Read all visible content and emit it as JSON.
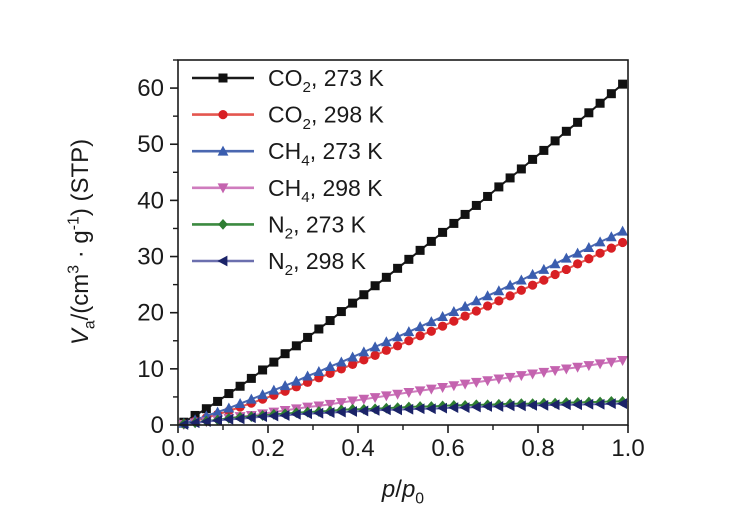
{
  "figure": {
    "background": "#ffffff",
    "frame_color": "#1a1a1a"
  },
  "chart_data": {
    "type": "line",
    "title": "",
    "xlabel_parts": [
      {
        "t": "p",
        "s": "i"
      },
      {
        "t": "/"
      },
      {
        "t": "p",
        "s": "i"
      },
      {
        "t": "0",
        "s": "sub"
      }
    ],
    "ylabel_parts": [
      {
        "t": "V",
        "s": "i"
      },
      {
        "t": "a",
        "s": "sub"
      },
      {
        "t": "/(cm"
      },
      {
        "t": "3",
        "s": "sup"
      },
      {
        "t": " · g"
      },
      {
        "t": "-1",
        "s": "sup"
      },
      {
        "t": ") (STP)"
      }
    ],
    "xlim": [
      0,
      1.0
    ],
    "ylim": [
      0,
      65
    ],
    "grid": false,
    "legend_position": "top-left",
    "x_ticks": {
      "values": [
        0,
        0.2,
        0.4,
        0.6,
        0.8,
        1.0
      ],
      "labels": [
        "0.0",
        "0.2",
        "0.4",
        "0.6",
        "0.8",
        "1.0"
      ],
      "minor": [
        0.1,
        0.3,
        0.5,
        0.7,
        0.9
      ]
    },
    "y_ticks": {
      "values": [
        0,
        10,
        20,
        30,
        40,
        50,
        60
      ],
      "labels": [
        "0",
        "10",
        "20",
        "30",
        "40",
        "50",
        "60"
      ],
      "minor": [
        5,
        15,
        25,
        35,
        45,
        55,
        65
      ]
    },
    "x": [
      0.013,
      0.038,
      0.063,
      0.088,
      0.113,
      0.138,
      0.163,
      0.188,
      0.213,
      0.238,
      0.263,
      0.288,
      0.313,
      0.338,
      0.363,
      0.388,
      0.413,
      0.438,
      0.463,
      0.488,
      0.513,
      0.538,
      0.563,
      0.588,
      0.613,
      0.638,
      0.663,
      0.688,
      0.713,
      0.738,
      0.763,
      0.788,
      0.813,
      0.838,
      0.863,
      0.888,
      0.913,
      0.938,
      0.963,
      0.988
    ],
    "series": [
      {
        "id": "co2-273k",
        "label_parts": [
          {
            "t": "CO"
          },
          {
            "t": "2",
            "s": "sub"
          },
          {
            "t": ", 273 K"
          }
        ],
        "marker": "square",
        "line_color": "#1a1a1a",
        "marker_color": "#111111",
        "values": [
          0.5,
          1.7,
          2.9,
          4.2,
          5.6,
          6.9,
          8.3,
          9.8,
          11.2,
          12.7,
          14.1,
          15.6,
          17.1,
          18.6,
          20.2,
          21.7,
          23.2,
          24.8,
          26.3,
          27.9,
          29.5,
          31.1,
          32.7,
          34.3,
          35.9,
          37.5,
          39.1,
          40.7,
          42.4,
          44.0,
          45.6,
          47.3,
          48.9,
          50.6,
          52.3,
          53.9,
          55.6,
          57.3,
          59.0,
          60.7
        ]
      },
      {
        "id": "co2-298k",
        "label_parts": [
          {
            "t": "CO"
          },
          {
            "t": "2",
            "s": "sub"
          },
          {
            "t": ", 298 K"
          }
        ],
        "marker": "circle",
        "line_color": "#e4564f",
        "marker_color": "#d81f24",
        "values": [
          0.2,
          0.7,
          1.3,
          1.9,
          2.5,
          3.2,
          3.9,
          4.6,
          5.3,
          6.0,
          6.8,
          7.6,
          8.4,
          9.2,
          10.0,
          10.8,
          11.6,
          12.4,
          13.3,
          14.1,
          15.0,
          15.9,
          16.7,
          17.6,
          18.5,
          19.4,
          20.3,
          21.2,
          22.1,
          23.0,
          24.0,
          24.9,
          25.8,
          26.8,
          27.7,
          28.7,
          29.6,
          30.6,
          31.5,
          32.5
        ]
      },
      {
        "id": "ch4-273k",
        "label_parts": [
          {
            "t": "CH"
          },
          {
            "t": "4",
            "s": "sub"
          },
          {
            "t": ", 273 K"
          }
        ],
        "marker": "triangle-up",
        "line_color": "#4a67b0",
        "marker_color": "#3a5daf",
        "values": [
          0.3,
          0.9,
          1.6,
          2.3,
          3.0,
          3.8,
          4.6,
          5.4,
          6.2,
          7.0,
          7.8,
          8.7,
          9.5,
          10.4,
          11.2,
          12.1,
          13.0,
          13.9,
          14.8,
          15.7,
          16.6,
          17.5,
          18.4,
          19.3,
          20.2,
          21.1,
          22.1,
          23.0,
          23.9,
          24.9,
          25.8,
          26.8,
          27.7,
          28.7,
          29.7,
          30.6,
          31.6,
          32.6,
          33.5,
          34.5
        ]
      },
      {
        "id": "ch4-298k",
        "label_parts": [
          {
            "t": "CH"
          },
          {
            "t": "4",
            "s": "sub"
          },
          {
            "t": ", 298 K"
          }
        ],
        "marker": "triangle-down",
        "line_color": "#cf7cbe",
        "marker_color": "#c463af",
        "values": [
          0.1,
          0.4,
          0.6,
          0.9,
          1.2,
          1.5,
          1.7,
          2.0,
          2.3,
          2.6,
          2.9,
          3.2,
          3.4,
          3.7,
          4.0,
          4.3,
          4.6,
          4.9,
          5.2,
          5.5,
          5.8,
          6.1,
          6.4,
          6.7,
          7.0,
          7.3,
          7.6,
          7.9,
          8.2,
          8.5,
          8.8,
          9.1,
          9.4,
          9.7,
          10.0,
          10.3,
          10.6,
          10.9,
          11.2,
          11.5
        ]
      },
      {
        "id": "n2-273k",
        "label_parts": [
          {
            "t": "N"
          },
          {
            "t": "2",
            "s": "sub"
          },
          {
            "t": ", 273 K"
          }
        ],
        "marker": "diamond",
        "line_color": "#3c8a40",
        "marker_color": "#2e7d32",
        "values": [
          0.2,
          0.4,
          0.7,
          0.9,
          1.2,
          1.4,
          1.5,
          1.7,
          1.9,
          2.0,
          2.2,
          2.3,
          2.4,
          2.5,
          2.7,
          2.8,
          2.8,
          2.9,
          3.0,
          3.1,
          3.2,
          3.3,
          3.3,
          3.4,
          3.5,
          3.5,
          3.6,
          3.6,
          3.7,
          3.8,
          3.8,
          3.8,
          3.9,
          3.9,
          4.0,
          4.0,
          4.1,
          4.1,
          4.2,
          4.2
        ]
      },
      {
        "id": "n2-298k",
        "label_parts": [
          {
            "t": "N"
          },
          {
            "t": "2",
            "s": "sub"
          },
          {
            "t": ", 298 K"
          }
        ],
        "marker": "triangle-left",
        "line_color": "#6b6fae",
        "marker_color": "#1b2368",
        "values": [
          0.1,
          0.4,
          0.6,
          0.8,
          1.0,
          1.1,
          1.3,
          1.5,
          1.6,
          1.7,
          1.9,
          2.0,
          2.1,
          2.2,
          2.3,
          2.4,
          2.5,
          2.6,
          2.7,
          2.7,
          2.8,
          2.9,
          2.9,
          3.0,
          3.1,
          3.1,
          3.2,
          3.3,
          3.3,
          3.4,
          3.4,
          3.5,
          3.5,
          3.6,
          3.6,
          3.6,
          3.7,
          3.7,
          3.8,
          3.8
        ]
      }
    ]
  }
}
